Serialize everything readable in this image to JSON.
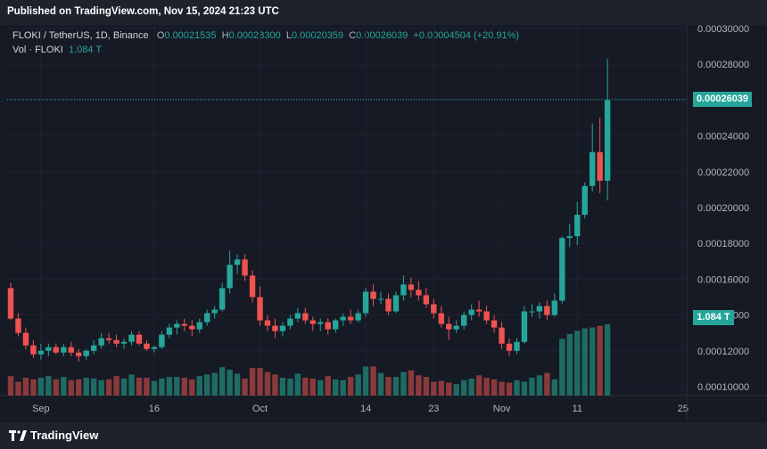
{
  "header": {
    "published": "Published on TradingView.com, Nov 15, 2024 21:23 UTC"
  },
  "legend": {
    "symbol": "FLOKI / TetherUS, 1D, Binance",
    "o_label": "O",
    "o_value": "0.00021535",
    "h_label": "H",
    "h_value": "0.00028300",
    "l_label": "L",
    "l_value": "0.00020359",
    "c_label": "C",
    "c_value": "0.00026039",
    "change": "+0.00004504 (+20.91%)",
    "vol_label": "Vol · FLOKI",
    "vol_value": "1.084 T"
  },
  "price_tag": "0.00026039",
  "volume_tag": "1.084 T",
  "footer": {
    "brand": "TradingView"
  },
  "colors": {
    "up": "#26a69a",
    "down": "#ef5350",
    "up_vol": "#1f6b63",
    "down_vol": "#8a3a3b",
    "background": "#161a25",
    "grid": "#1f2330"
  },
  "chart_data": {
    "type": "candlestick",
    "ylim": [
      9.5e-05,
      0.000302
    ],
    "yticks": [
      "0.00030000",
      "0.00028000",
      "0.00026000",
      "0.00024000",
      "0.00022000",
      "0.00020000",
      "0.00018000",
      "0.00016000",
      "0.00014000",
      "0.00012000",
      "0.00010000"
    ],
    "ytick_values": [
      0.0003,
      0.00028,
      0.00026,
      0.00024,
      0.00022,
      0.0002,
      0.00018,
      0.00016,
      0.00014,
      0.00012,
      0.0001
    ],
    "xticks": [
      {
        "label": "Sep",
        "index": 4
      },
      {
        "label": "16",
        "index": 19
      },
      {
        "label": "Oct",
        "index": 33
      },
      {
        "label": "14",
        "index": 47
      },
      {
        "label": "23",
        "index": 56
      },
      {
        "label": "Nov",
        "index": 65
      },
      {
        "label": "11",
        "index": 75
      },
      {
        "label": "25",
        "index": 89
      }
    ],
    "current_close": 0.00026039,
    "ohlc": [
      [
        0.000155,
        0.000158,
        0.000137,
        0.000138
      ],
      [
        0.000138,
        0.000141,
        0.000128,
        0.00013
      ],
      [
        0.00013,
        0.000133,
        0.000121,
        0.000123
      ],
      [
        0.000123,
        0.000126,
        0.000116,
        0.000118
      ],
      [
        0.000118,
        0.000124,
        0.000115,
        0.00012
      ],
      [
        0.00012,
        0.000124,
        0.000117,
        0.000122
      ],
      [
        0.000122,
        0.000124,
        0.000118,
        0.000119
      ],
      [
        0.000119,
        0.000124,
        0.000117,
        0.000122
      ],
      [
        0.000122,
        0.000125,
        0.000117,
        0.000119
      ],
      [
        0.000119,
        0.000121,
        0.000114,
        0.000117
      ],
      [
        0.000117,
        0.000121,
        0.000115,
        0.00012
      ],
      [
        0.00012,
        0.000126,
        0.000118,
        0.000123
      ],
      [
        0.000123,
        0.00013,
        0.000121,
        0.000127
      ],
      [
        0.000127,
        0.00013,
        0.000124,
        0.000126
      ],
      [
        0.000126,
        0.000129,
        0.000122,
        0.000124
      ],
      [
        0.000124,
        0.000127,
        0.000121,
        0.000125
      ],
      [
        0.000125,
        0.000131,
        0.000123,
        0.000129
      ],
      [
        0.000129,
        0.000131,
        0.000123,
        0.000124
      ],
      [
        0.000124,
        0.000126,
        0.00012,
        0.000121
      ],
      [
        0.000121,
        0.000123,
        0.000119,
        0.000122
      ],
      [
        0.000122,
        0.000131,
        0.000121,
        0.000129
      ],
      [
        0.000129,
        0.000135,
        0.000127,
        0.000133
      ],
      [
        0.000133,
        0.000137,
        0.000129,
        0.000135
      ],
      [
        0.000135,
        0.000138,
        0.000131,
        0.000134
      ],
      [
        0.000134,
        0.000137,
        0.000128,
        0.000132
      ],
      [
        0.000132,
        0.000138,
        0.00013,
        0.000136
      ],
      [
        0.000136,
        0.000143,
        0.000134,
        0.000141
      ],
      [
        0.000141,
        0.000145,
        0.000138,
        0.000143
      ],
      [
        0.000143,
        0.000158,
        0.000142,
        0.000155
      ],
      [
        0.000155,
        0.000176,
        0.000152,
        0.000168
      ],
      [
        0.000168,
        0.000174,
        0.000163,
        0.000171
      ],
      [
        0.000171,
        0.000174,
        0.000159,
        0.000162
      ],
      [
        0.000162,
        0.000165,
        0.000147,
        0.00015
      ],
      [
        0.00015,
        0.000156,
        0.000134,
        0.000137
      ],
      [
        0.000137,
        0.00014,
        0.000131,
        0.000134
      ],
      [
        0.000134,
        0.000138,
        0.000127,
        0.000131
      ],
      [
        0.000131,
        0.000136,
        0.000128,
        0.000134
      ],
      [
        0.000134,
        0.00014,
        0.000132,
        0.000138
      ],
      [
        0.000138,
        0.000144,
        0.000136,
        0.000141
      ],
      [
        0.000141,
        0.000144,
        0.000135,
        0.000137
      ],
      [
        0.000137,
        0.000139,
        0.000131,
        0.000135
      ],
      [
        0.000135,
        0.000138,
        0.000131,
        0.000136
      ],
      [
        0.000136,
        0.000138,
        0.000129,
        0.000132
      ],
      [
        0.000132,
        0.000138,
        0.00013,
        0.000137
      ],
      [
        0.000137,
        0.000141,
        0.000134,
        0.000139
      ],
      [
        0.000139,
        0.000143,
        0.000135,
        0.000137
      ],
      [
        0.000137,
        0.000143,
        0.000136,
        0.000141
      ],
      [
        0.000141,
        0.000155,
        0.000139,
        0.000153
      ],
      [
        0.000153,
        0.000157,
        0.000145,
        0.000149
      ],
      [
        0.000149,
        0.000153,
        0.000146,
        0.000149
      ],
      [
        0.000149,
        0.000152,
        0.00014,
        0.000142
      ],
      [
        0.000142,
        0.000153,
        0.000141,
        0.000151
      ],
      [
        0.000151,
        0.000162,
        0.000148,
        0.000157
      ],
      [
        0.000157,
        0.000161,
        0.00015,
        0.000154
      ],
      [
        0.000154,
        0.000159,
        0.000148,
        0.000151
      ],
      [
        0.000151,
        0.000155,
        0.000144,
        0.000146
      ],
      [
        0.000146,
        0.000149,
        0.000138,
        0.000141
      ],
      [
        0.000141,
        0.000145,
        0.000133,
        0.000135
      ],
      [
        0.000135,
        0.000139,
        0.000126,
        0.000132
      ],
      [
        0.000132,
        0.000137,
        0.00013,
        0.000134
      ],
      [
        0.000134,
        0.000142,
        0.000132,
        0.00014
      ],
      [
        0.00014,
        0.000146,
        0.000137,
        0.000143
      ],
      [
        0.000143,
        0.000148,
        0.000139,
        0.000142
      ],
      [
        0.000142,
        0.000145,
        0.000135,
        0.000137
      ],
      [
        0.000137,
        0.00014,
        0.00013,
        0.000133
      ],
      [
        0.000133,
        0.000136,
        0.000121,
        0.000124
      ],
      [
        0.000124,
        0.000127,
        0.000117,
        0.00012
      ],
      [
        0.00012,
        0.000127,
        0.000118,
        0.000125
      ],
      [
        0.000125,
        0.000145,
        0.000124,
        0.000142
      ],
      [
        0.000142,
        0.000146,
        0.000139,
        0.000142
      ],
      [
        0.000142,
        0.000147,
        0.000138,
        0.000145
      ],
      [
        0.000145,
        0.000148,
        0.000137,
        0.00014
      ],
      [
        0.00014,
        0.000152,
        0.000139,
        0.000148
      ],
      [
        0.000148,
        0.000184,
        0.000146,
        0.000183
      ],
      [
        0.000183,
        0.000191,
        0.000178,
        0.000184
      ],
      [
        0.000184,
        0.000203,
        0.000179,
        0.000196
      ],
      [
        0.000196,
        0.000214,
        0.000194,
        0.000212
      ],
      [
        0.000212,
        0.000247,
        0.000209,
        0.000231
      ],
      [
        0.000231,
        0.00025,
        0.000208,
        0.000215
      ],
      [
        0.000215,
        0.000283,
        0.000204,
        0.00026
      ]
    ],
    "volume": [
      24,
      17,
      22,
      20,
      22,
      24,
      20,
      23,
      19,
      20,
      22,
      21,
      19,
      20,
      24,
      21,
      26,
      22,
      22,
      18,
      21,
      23,
      23,
      22,
      20,
      24,
      26,
      28,
      35,
      32,
      27,
      21,
      34,
      34,
      29,
      26,
      22,
      21,
      27,
      22,
      21,
      19,
      24,
      20,
      19,
      23,
      26,
      36,
      36,
      28,
      23,
      23,
      29,
      31,
      25,
      23,
      17,
      18,
      16,
      14,
      19,
      21,
      25,
      22,
      20,
      17,
      16,
      19,
      17,
      22,
      25,
      28,
      20,
      70,
      76,
      80,
      83,
      84,
      86,
      88
    ]
  }
}
